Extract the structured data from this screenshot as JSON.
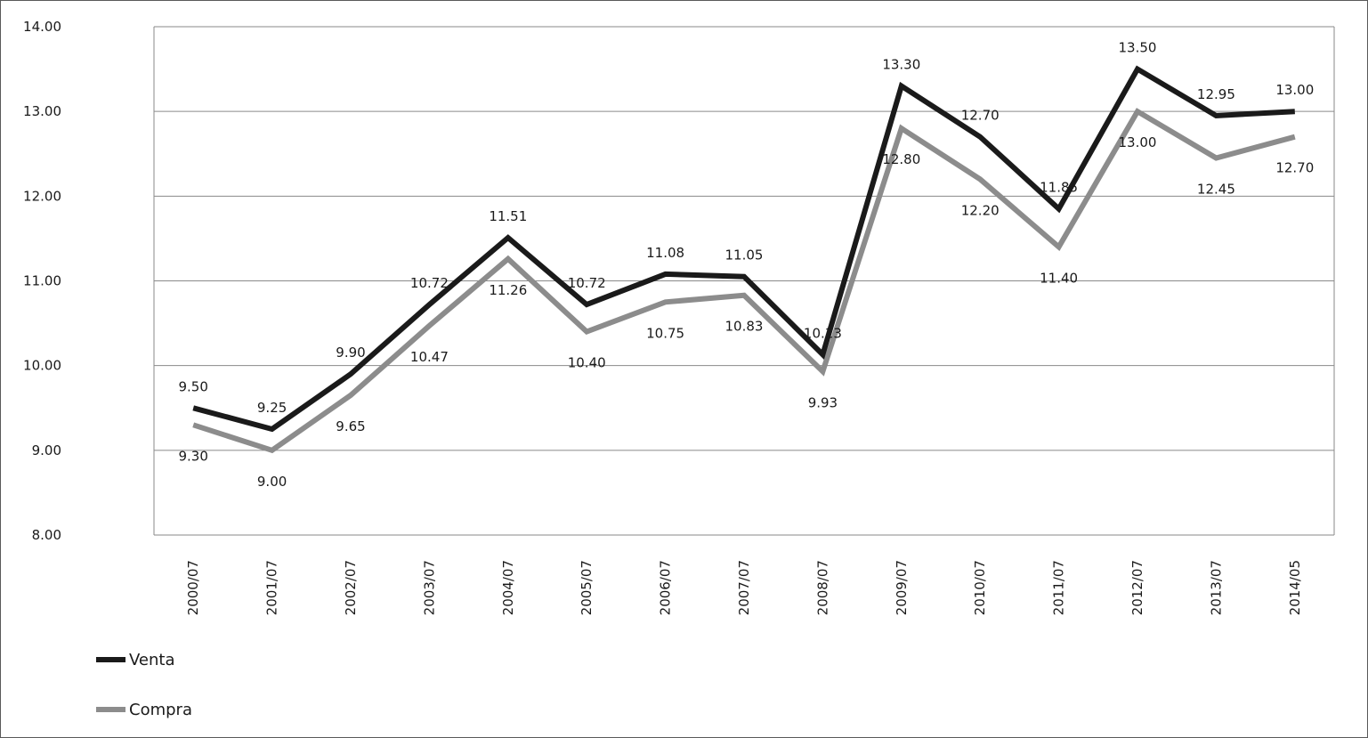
{
  "chart_data": {
    "type": "line",
    "categories": [
      "2000/07",
      "2001/07",
      "2002/07",
      "2003/07",
      "2004/07",
      "2005/07",
      "2006/07",
      "2007/07",
      "2008/07",
      "2009/07",
      "2010/07",
      "2011/07",
      "2012/07",
      "2013/07",
      "2014/05"
    ],
    "series": [
      {
        "name": "Venta",
        "color": "#1a1a1a",
        "values": [
          9.5,
          9.25,
          9.9,
          10.72,
          11.51,
          10.72,
          11.08,
          11.05,
          10.13,
          13.3,
          12.7,
          11.85,
          13.5,
          12.95,
          13.0
        ],
        "labels": [
          "9.50",
          "9.25",
          "9.90",
          "10.72",
          "11.51",
          "10.72",
          "11.08",
          "11.05",
          "10.13",
          "13.30",
          "12.70",
          "11.85",
          "13.50",
          "12.95",
          "13.00"
        ]
      },
      {
        "name": "Compra",
        "color": "#8c8c8c",
        "values": [
          9.3,
          9.0,
          9.65,
          10.47,
          11.26,
          10.4,
          10.75,
          10.83,
          9.93,
          12.8,
          12.2,
          11.4,
          13.0,
          12.45,
          12.7
        ],
        "labels": [
          "9.30",
          "9.00",
          "9.65",
          "10.47",
          "11.26",
          "10.40",
          "10.75",
          "10.83",
          "9.93",
          "12.80",
          "12.20",
          "11.40",
          "13.00",
          "12.45",
          "12.70"
        ]
      }
    ],
    "ylim": [
      8.0,
      14.0
    ],
    "yticks": [
      "8.00",
      "9.00",
      "10.00",
      "11.00",
      "12.00",
      "13.00",
      "14.00"
    ],
    "grid": true,
    "legend_position": "bottom-left"
  }
}
